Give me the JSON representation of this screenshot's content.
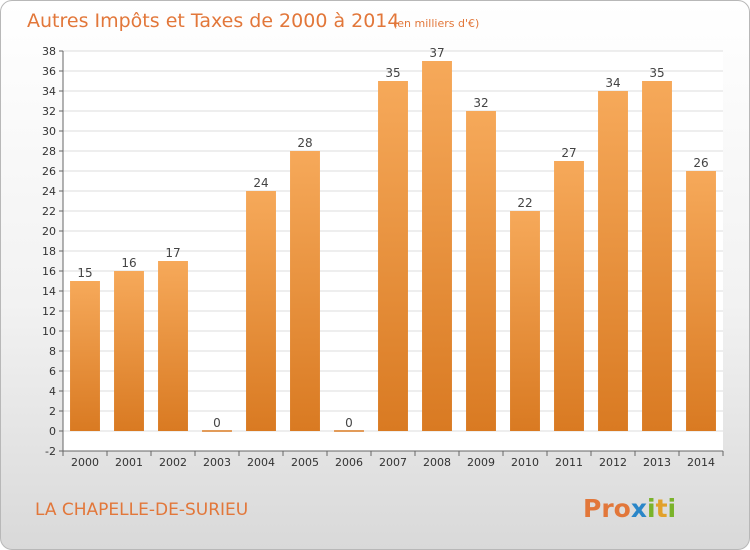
{
  "chart_data": {
    "type": "bar",
    "title": "Autres Impôts et Taxes de 2000 à 2014",
    "unit_note": "(en milliers d'€)",
    "categories": [
      "2000",
      "2001",
      "2002",
      "2003",
      "2004",
      "2005",
      "2006",
      "2007",
      "2008",
      "2009",
      "2010",
      "2011",
      "2012",
      "2013",
      "2014"
    ],
    "values": [
      15,
      16,
      17,
      0,
      24,
      28,
      0,
      35,
      37,
      32,
      22,
      27,
      34,
      35,
      26
    ],
    "ylim": [
      -2,
      38
    ],
    "yticks": [
      -2,
      0,
      2,
      4,
      6,
      8,
      10,
      12,
      14,
      16,
      18,
      20,
      22,
      24,
      26,
      28,
      30,
      32,
      34,
      36,
      38
    ],
    "grid": "horizontal",
    "xlabel": "",
    "ylabel": "",
    "colors": {
      "bar_light": "#f6a95a",
      "bar_dark": "#d97a22",
      "title": "#e2773a"
    }
  },
  "footer": {
    "commune": "LA CHAPELLE-DE-SURIEU",
    "brand": [
      "P",
      "r",
      "o",
      "x",
      "i",
      "t",
      "i"
    ],
    "brand_colors": [
      "#e2773a",
      "#e2773a",
      "#e2773a",
      "#2a86c8",
      "#7ab32a",
      "#e2a12a",
      "#7ab32a"
    ]
  }
}
